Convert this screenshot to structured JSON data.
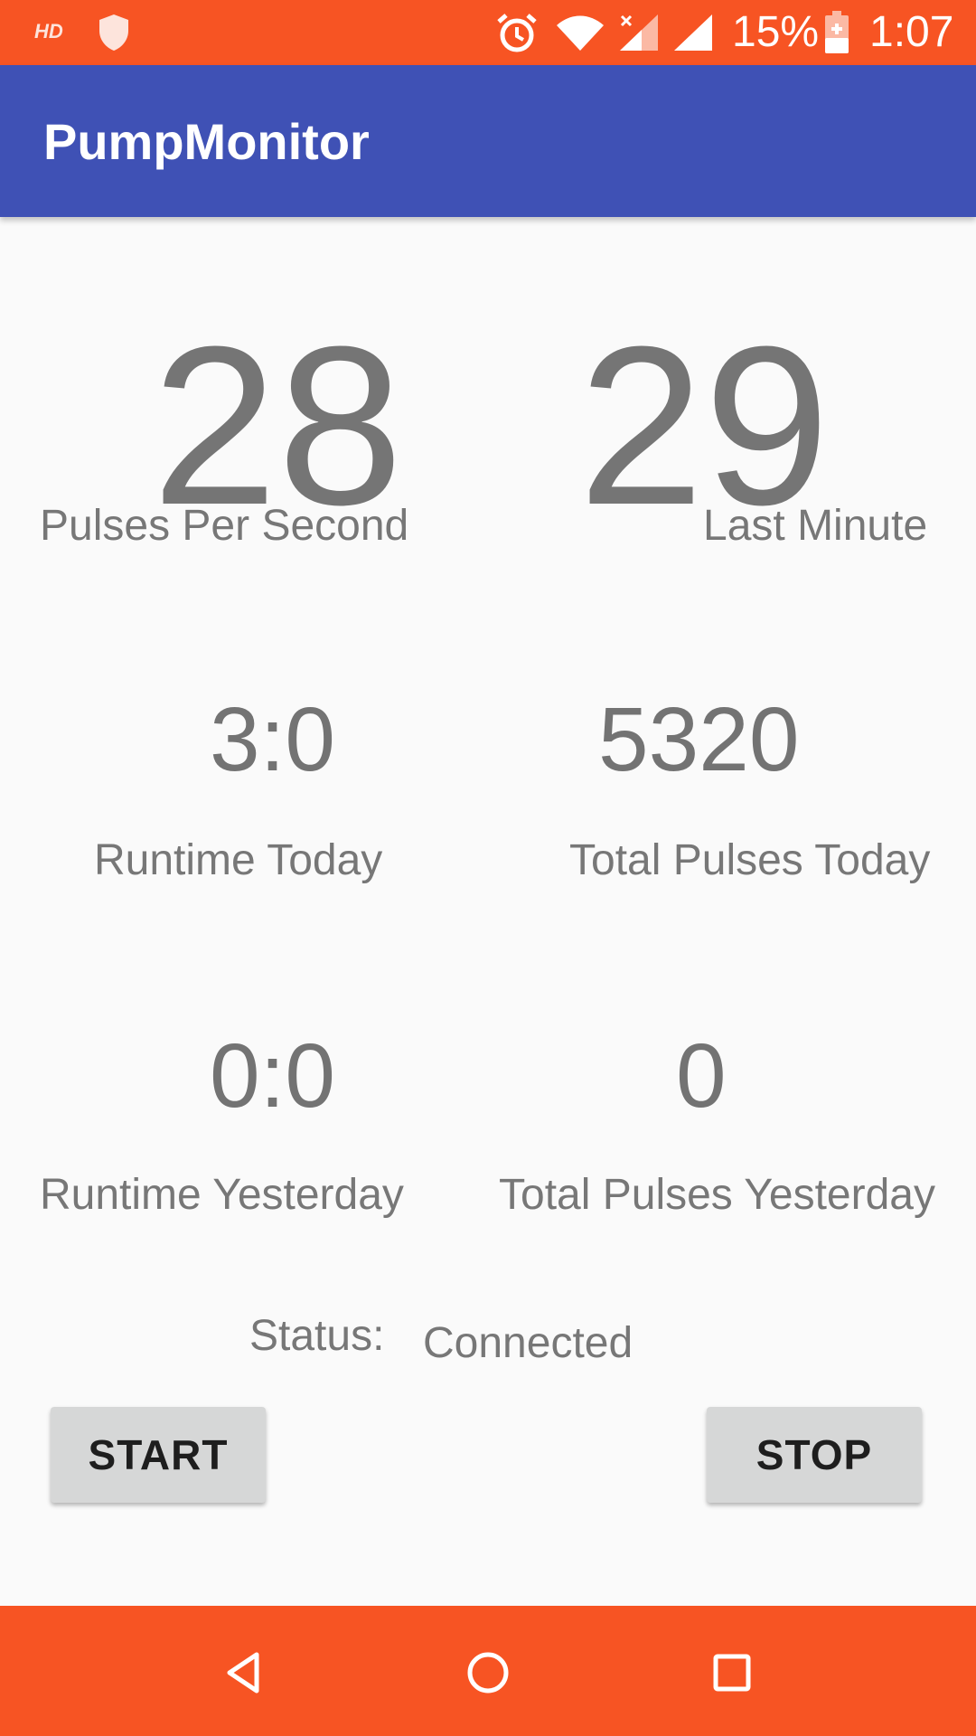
{
  "status_bar": {
    "hd_label": "HD",
    "battery_percent": "15%",
    "time": "1:07",
    "icons": [
      "shield-icon",
      "alarm-icon",
      "wifi-icon",
      "signal-icon",
      "battery-charging-icon"
    ]
  },
  "app_bar": {
    "title": "PumpMonitor",
    "color": "#3f51b5"
  },
  "metrics": {
    "pulses_per_second": {
      "value": "28",
      "label": "Pulses Per Second"
    },
    "last_minute": {
      "value": "29",
      "label": "Last Minute"
    },
    "runtime_today": {
      "value": "3:0",
      "label": "Runtime Today"
    },
    "total_pulses_today": {
      "value": "5320",
      "label": "Total Pulses Today"
    },
    "runtime_yesterday": {
      "value": "0:0",
      "label": "Runtime Yesterday"
    },
    "total_pulses_yesterday": {
      "value": "0",
      "label": "Total Pulses Yesterday"
    }
  },
  "status": {
    "label": "Status:",
    "value": "Connected"
  },
  "buttons": {
    "start": "START",
    "stop": "STOP"
  },
  "nav_bar": {
    "color": "#f75423",
    "icons": [
      "back-icon",
      "home-icon",
      "recents-icon"
    ]
  }
}
